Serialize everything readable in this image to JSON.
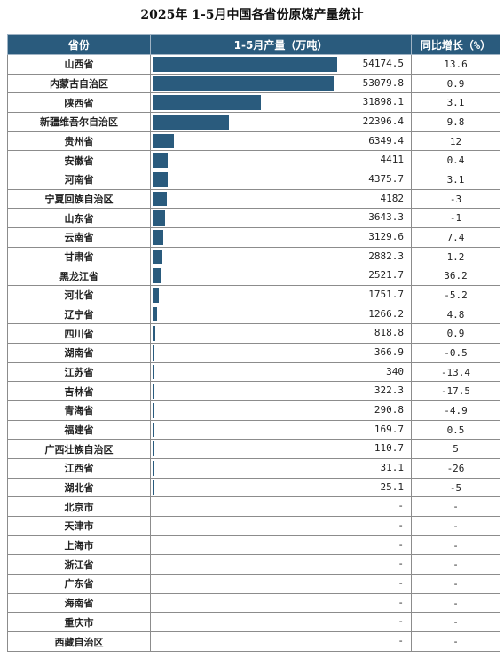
{
  "title": "2025年 1-5月中国各省份原煤产量统计",
  "headers": {
    "province": "省份",
    "output": "1-5月产量（万吨）",
    "yoy": "同比增长（%）"
  },
  "colors": {
    "bar": "#2a5b7d",
    "header_bg": "#2a5b7d"
  },
  "chart_data": {
    "type": "table",
    "columns": [
      "省份",
      "1-5月产量（万吨）",
      "同比增长（%）"
    ],
    "rows": [
      {
        "province": "山西省",
        "output": "54174.5",
        "yoy": "13.6"
      },
      {
        "province": "内蒙古自治区",
        "output": "53079.8",
        "yoy": "0.9"
      },
      {
        "province": "陕西省",
        "output": "31898.1",
        "yoy": "3.1"
      },
      {
        "province": "新疆维吾尔自治区",
        "output": "22396.4",
        "yoy": "9.8"
      },
      {
        "province": "贵州省",
        "output": "6349.4",
        "yoy": "12"
      },
      {
        "province": "安徽省",
        "output": "4411",
        "yoy": "0.4"
      },
      {
        "province": "河南省",
        "output": "4375.7",
        "yoy": "3.1"
      },
      {
        "province": "宁夏回族自治区",
        "output": "4182",
        "yoy": "-3"
      },
      {
        "province": "山东省",
        "output": "3643.3",
        "yoy": "-1"
      },
      {
        "province": "云南省",
        "output": "3129.6",
        "yoy": "7.4"
      },
      {
        "province": "甘肃省",
        "output": "2882.3",
        "yoy": "1.2"
      },
      {
        "province": "黑龙江省",
        "output": "2521.7",
        "yoy": "36.2"
      },
      {
        "province": "河北省",
        "output": "1751.7",
        "yoy": "-5.2"
      },
      {
        "province": "辽宁省",
        "output": "1266.2",
        "yoy": "4.8"
      },
      {
        "province": "四川省",
        "output": "818.8",
        "yoy": "0.9"
      },
      {
        "province": "湖南省",
        "output": "366.9",
        "yoy": "-0.5"
      },
      {
        "province": "江苏省",
        "output": "340",
        "yoy": "-13.4"
      },
      {
        "province": "吉林省",
        "output": "322.3",
        "yoy": "-17.5"
      },
      {
        "province": "青海省",
        "output": "290.8",
        "yoy": "-4.9"
      },
      {
        "province": "福建省",
        "output": "169.7",
        "yoy": "0.5"
      },
      {
        "province": "广西壮族自治区",
        "output": "110.7",
        "yoy": "5"
      },
      {
        "province": "江西省",
        "output": "31.1",
        "yoy": "-26"
      },
      {
        "province": "湖北省",
        "output": "25.1",
        "yoy": "-5"
      },
      {
        "province": "北京市",
        "output": "-",
        "yoy": "-"
      },
      {
        "province": "天津市",
        "output": "-",
        "yoy": "-"
      },
      {
        "province": "上海市",
        "output": "-",
        "yoy": "-"
      },
      {
        "province": "浙江省",
        "output": "-",
        "yoy": "-"
      },
      {
        "province": "广东省",
        "output": "-",
        "yoy": "-"
      },
      {
        "province": "海南省",
        "output": "-",
        "yoy": "-"
      },
      {
        "province": "重庆市",
        "output": "-",
        "yoy": "-"
      },
      {
        "province": "西藏自治区",
        "output": "-",
        "yoy": "-"
      }
    ]
  }
}
